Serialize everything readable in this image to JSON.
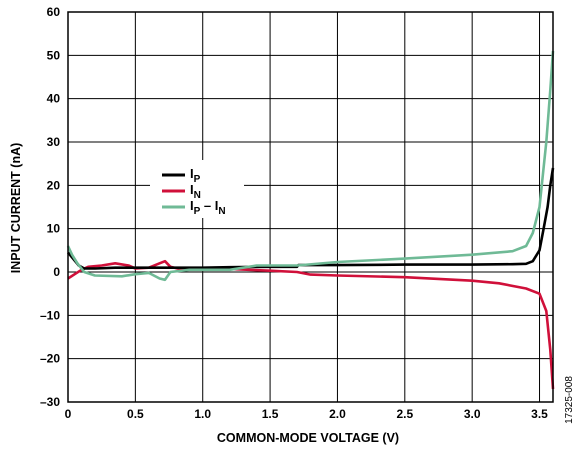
{
  "chart_data": {
    "type": "line",
    "xlabel": "COMMON-MODE VOLTAGE (V)",
    "ylabel": "INPUT CURRENT (nA)",
    "xlim": [
      0,
      3.6
    ],
    "ylim": [
      -30,
      60
    ],
    "x_ticks": [
      "0",
      "0.5",
      "1.0",
      "1.5",
      "2.0",
      "2.5",
      "3.0",
      "3.5"
    ],
    "y_ticks": [
      "60",
      "50",
      "40",
      "30",
      "20",
      "10",
      "0",
      "–10",
      "–20",
      "–30"
    ],
    "grid": true,
    "legend_placement": "center-left",
    "figure_id": "17325-008",
    "series": [
      {
        "name": "IP",
        "legend_main": "I",
        "legend_sub": "P",
        "color": "#000000",
        "points": [
          [
            0,
            4.5
          ],
          [
            0.04,
            3
          ],
          [
            0.08,
            1.5
          ],
          [
            0.12,
            0.8
          ],
          [
            0.2,
            0.8
          ],
          [
            0.35,
            1
          ],
          [
            0.5,
            1
          ],
          [
            0.7,
            1
          ],
          [
            1.0,
            1
          ],
          [
            1.2,
            1.1
          ],
          [
            1.5,
            1.2
          ],
          [
            1.7,
            1.2
          ],
          [
            1.71,
            1.6
          ],
          [
            2.0,
            1.6
          ],
          [
            2.5,
            1.7
          ],
          [
            3.0,
            1.7
          ],
          [
            3.3,
            1.8
          ],
          [
            3.4,
            1.9
          ],
          [
            3.45,
            2.5
          ],
          [
            3.5,
            5
          ],
          [
            3.53,
            10
          ],
          [
            3.56,
            15
          ],
          [
            3.58,
            20
          ],
          [
            3.6,
            24
          ]
        ]
      },
      {
        "name": "IN",
        "legend_main": "I",
        "legend_sub": "N",
        "color": "#d0103a",
        "points": [
          [
            0,
            -1.5
          ],
          [
            0.05,
            -0.5
          ],
          [
            0.1,
            0.5
          ],
          [
            0.15,
            1.2
          ],
          [
            0.25,
            1.5
          ],
          [
            0.35,
            2
          ],
          [
            0.45,
            1.5
          ],
          [
            0.5,
            0.8
          ],
          [
            0.6,
            1
          ],
          [
            0.68,
            2
          ],
          [
            0.72,
            2.5
          ],
          [
            0.76,
            1.2
          ],
          [
            0.85,
            0.5
          ],
          [
            1.0,
            0.8
          ],
          [
            1.2,
            0.7
          ],
          [
            1.5,
            0.3
          ],
          [
            1.7,
            0
          ],
          [
            1.8,
            -0.6
          ],
          [
            2.0,
            -0.8
          ],
          [
            2.5,
            -1.2
          ],
          [
            3.0,
            -2
          ],
          [
            3.2,
            -2.6
          ],
          [
            3.4,
            -3.8
          ],
          [
            3.5,
            -5
          ],
          [
            3.55,
            -9
          ],
          [
            3.58,
            -18
          ],
          [
            3.6,
            -27
          ]
        ]
      },
      {
        "name": "IP – IN",
        "legend_main": "I",
        "legend_sub": "P",
        "legend_main2": " – I",
        "legend_sub2": "N",
        "color": "#6fba96",
        "points": [
          [
            0,
            6
          ],
          [
            0.03,
            4
          ],
          [
            0.07,
            2
          ],
          [
            0.12,
            0
          ],
          [
            0.2,
            -0.8
          ],
          [
            0.4,
            -1
          ],
          [
            0.5,
            -0.5
          ],
          [
            0.6,
            -0.2
          ],
          [
            0.68,
            -1.5
          ],
          [
            0.72,
            -1.8
          ],
          [
            0.76,
            0
          ],
          [
            0.9,
            0.5
          ],
          [
            1.2,
            0.5
          ],
          [
            1.4,
            1.5
          ],
          [
            1.7,
            1.5
          ],
          [
            2.0,
            2.3
          ],
          [
            2.5,
            3.1
          ],
          [
            3.0,
            4
          ],
          [
            3.3,
            4.8
          ],
          [
            3.4,
            6
          ],
          [
            3.45,
            9
          ],
          [
            3.5,
            15
          ],
          [
            3.55,
            30
          ],
          [
            3.58,
            42
          ],
          [
            3.6,
            51
          ]
        ]
      }
    ]
  }
}
